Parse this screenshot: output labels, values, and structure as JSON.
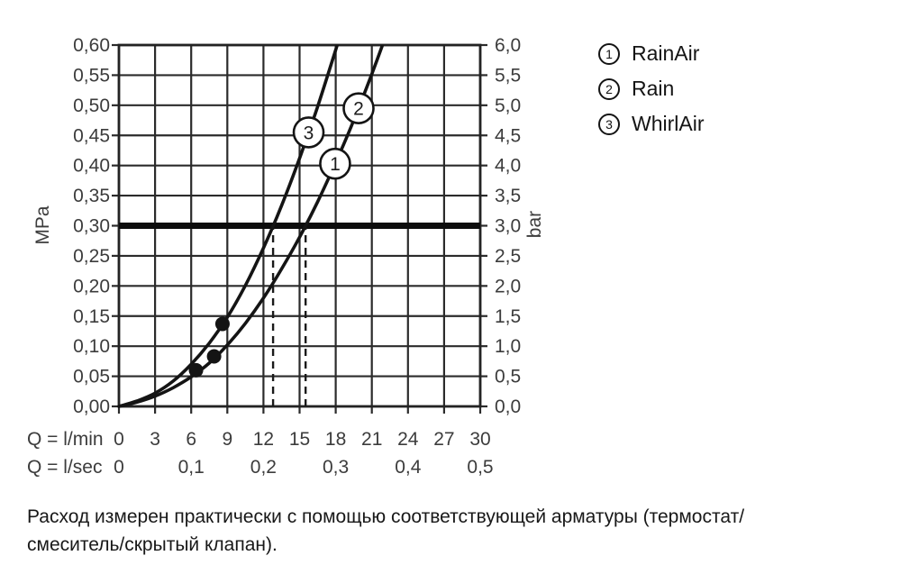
{
  "colors": {
    "ink": "#141414",
    "grid": "#2b2b2b",
    "axis_text": "#3c3c3c"
  },
  "chart_data": {
    "type": "line",
    "title": "",
    "x_axis": {
      "label_min": "Q = l/min",
      "label_sec": "Q = l/sec",
      "min": 0,
      "max": 30,
      "step": 3,
      "ticks_lmin": [
        "0",
        "3",
        "6",
        "9",
        "12",
        "15",
        "18",
        "21",
        "24",
        "27",
        "30"
      ],
      "ticks_lsec": [
        {
          "q": 0,
          "label": "0"
        },
        {
          "q": 6,
          "label": "0,1"
        },
        {
          "q": 12,
          "label": "0,2"
        },
        {
          "q": 18,
          "label": "0,3"
        },
        {
          "q": 24,
          "label": "0,4"
        },
        {
          "q": 30,
          "label": "0,5"
        }
      ]
    },
    "y_axis_left": {
      "label": "MPa",
      "min": 0,
      "max": 0.6,
      "step": 0.05,
      "ticks": [
        "0,60",
        "0,55",
        "0,50",
        "0,45",
        "0,40",
        "0,35",
        "0,30",
        "0,25",
        "0,20",
        "0,15",
        "0,10",
        "0,05",
        "0,00"
      ]
    },
    "y_axis_right": {
      "label": "bar",
      "min": 0,
      "max": 6,
      "step": 0.5,
      "ticks": [
        "6,0",
        "5,5",
        "5,0",
        "4,5",
        "4,0",
        "3,5",
        "3,0",
        "2,5",
        "2,0",
        "1,5",
        "1,0",
        "0,5",
        "0,0"
      ]
    },
    "grid": true,
    "reference_line_mpa": 0.3,
    "dashed_guides_q_lmin": [
      12.8,
      15.5
    ],
    "curves": [
      {
        "name": "curve-3-whirlair",
        "markers": [
          {
            "label": "3",
            "q": 15.75,
            "mpa": 0.455
          }
        ],
        "points": [
          [
            0,
            0
          ],
          [
            1.5,
            0.009
          ],
          [
            3,
            0.022
          ],
          [
            4.5,
            0.042
          ],
          [
            6,
            0.07
          ],
          [
            7.5,
            0.105
          ],
          [
            9,
            0.148
          ],
          [
            10.5,
            0.201
          ],
          [
            12,
            0.263
          ],
          [
            13.5,
            0.333
          ],
          [
            15,
            0.412
          ],
          [
            16.5,
            0.498
          ],
          [
            18,
            0.592
          ],
          [
            18.3,
            0.612
          ]
        ]
      },
      {
        "name": "curve-1-2-rainair-rain",
        "markers": [
          {
            "label": "2",
            "q": 19.9,
            "mpa": 0.495
          },
          {
            "label": "1",
            "q": 17.95,
            "mpa": 0.403
          }
        ],
        "points": [
          [
            0,
            0
          ],
          [
            1.5,
            0.007
          ],
          [
            3,
            0.017
          ],
          [
            4.5,
            0.031
          ],
          [
            6,
            0.049
          ],
          [
            7.5,
            0.072
          ],
          [
            9,
            0.102
          ],
          [
            10.5,
            0.138
          ],
          [
            12,
            0.18
          ],
          [
            13.5,
            0.228
          ],
          [
            15,
            0.281
          ],
          [
            16.5,
            0.34
          ],
          [
            18,
            0.405
          ],
          [
            19.5,
            0.475
          ],
          [
            21,
            0.552
          ],
          [
            22.1,
            0.612
          ]
        ]
      }
    ],
    "dots": [
      [
        8.6,
        0.137
      ],
      [
        7.9,
        0.083
      ],
      [
        6.4,
        0.06
      ]
    ]
  },
  "legend": {
    "items": [
      {
        "num": "1",
        "label": "RainAir"
      },
      {
        "num": "2",
        "label": "Rain"
      },
      {
        "num": "3",
        "label": "WhirlAir"
      }
    ]
  },
  "caption_lines": [
    "Расход измерен практически с помощью соответствующей арматуры (термостат/",
    "смеситель/скрытый клапан)."
  ]
}
